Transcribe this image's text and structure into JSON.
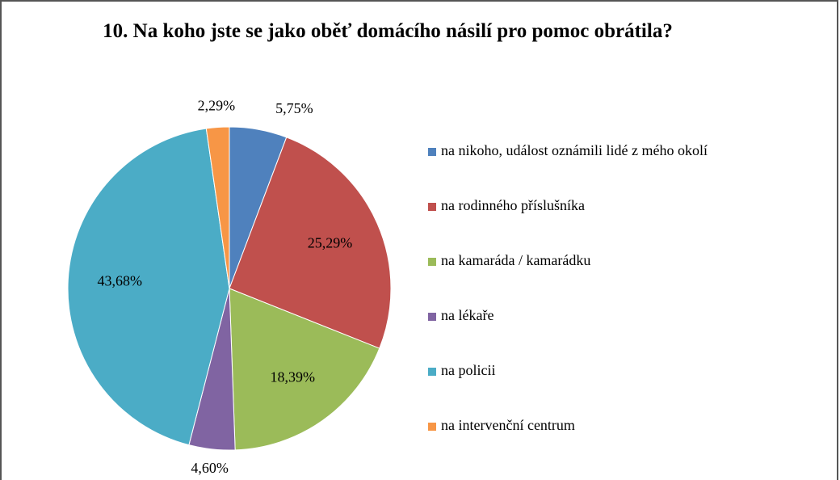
{
  "chart_data": {
    "type": "pie",
    "title": "10. Na koho jste se jako oběť domácího  násilí pro pomoc obrátila?",
    "categories": [
      "na nikoho, událost oznámili lidé z mého okolí",
      "na rodinného příslušníka",
      "na kamaráda / kamarádku",
      "na lékaře",
      "na policii",
      "na intervenční centrum"
    ],
    "values": [
      5.75,
      25.29,
      18.39,
      4.6,
      43.68,
      2.29
    ],
    "value_labels": [
      "5,75%",
      "25,29%",
      "18,39%",
      "4,60%",
      "43,68%",
      "2,29%"
    ],
    "colors": [
      "#4f81bd",
      "#c0504d",
      "#9bbb59",
      "#8064a2",
      "#4bacc6",
      "#f79646"
    ],
    "legend": "right"
  }
}
